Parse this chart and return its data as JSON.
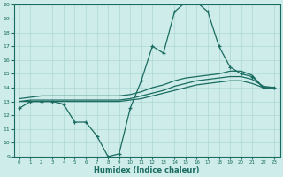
{
  "xlabel": "Humidex (Indice chaleur)",
  "bg_color": "#cdecea",
  "grid_color": "#aed8d5",
  "line_color": "#1a6b60",
  "xlim": [
    -0.5,
    23.5
  ],
  "ylim": [
    9,
    20
  ],
  "xticks": [
    0,
    1,
    2,
    3,
    4,
    5,
    6,
    7,
    8,
    9,
    10,
    11,
    12,
    13,
    14,
    15,
    16,
    17,
    18,
    19,
    20,
    21,
    22,
    23
  ],
  "yticks": [
    9,
    10,
    11,
    12,
    13,
    14,
    15,
    16,
    17,
    18,
    19,
    20
  ],
  "line1_x": [
    0,
    1,
    2,
    3,
    4,
    5,
    6,
    7,
    8,
    9,
    10,
    11,
    12,
    13,
    14,
    15,
    16,
    17,
    18,
    19,
    20,
    21,
    22,
    23
  ],
  "line1_y": [
    12.5,
    13.0,
    13.0,
    13.0,
    12.8,
    11.5,
    11.5,
    10.5,
    9.0,
    9.2,
    12.5,
    14.5,
    17.0,
    16.5,
    19.5,
    20.2,
    20.2,
    19.5,
    17.0,
    15.5,
    15.0,
    14.8,
    14.0,
    14.0
  ],
  "line2_x": [
    0,
    1,
    2,
    3,
    4,
    5,
    6,
    7,
    8,
    9,
    10,
    11,
    12,
    13,
    14,
    15,
    16,
    17,
    18,
    19,
    20,
    21,
    22,
    23
  ],
  "line2_y": [
    13.2,
    13.3,
    13.4,
    13.4,
    13.4,
    13.4,
    13.4,
    13.4,
    13.4,
    13.4,
    13.5,
    13.7,
    14.0,
    14.2,
    14.5,
    14.7,
    14.8,
    14.9,
    15.0,
    15.2,
    15.2,
    14.9,
    14.0,
    14.0
  ],
  "line3_x": [
    0,
    1,
    2,
    3,
    4,
    5,
    6,
    7,
    8,
    9,
    10,
    11,
    12,
    13,
    14,
    15,
    16,
    17,
    18,
    19,
    20,
    21,
    22,
    23
  ],
  "line3_y": [
    13.0,
    13.1,
    13.1,
    13.1,
    13.1,
    13.1,
    13.1,
    13.1,
    13.1,
    13.1,
    13.2,
    13.4,
    13.6,
    13.8,
    14.1,
    14.3,
    14.5,
    14.6,
    14.7,
    14.8,
    14.8,
    14.6,
    14.1,
    14.0
  ],
  "line4_x": [
    0,
    1,
    2,
    3,
    4,
    5,
    6,
    7,
    8,
    9,
    10,
    11,
    12,
    13,
    14,
    15,
    16,
    17,
    18,
    19,
    20,
    21,
    22,
    23
  ],
  "line4_y": [
    13.0,
    13.0,
    13.0,
    13.0,
    13.0,
    13.0,
    13.0,
    13.0,
    13.0,
    13.0,
    13.1,
    13.2,
    13.4,
    13.6,
    13.8,
    14.0,
    14.2,
    14.3,
    14.4,
    14.5,
    14.5,
    14.3,
    14.0,
    13.9
  ]
}
